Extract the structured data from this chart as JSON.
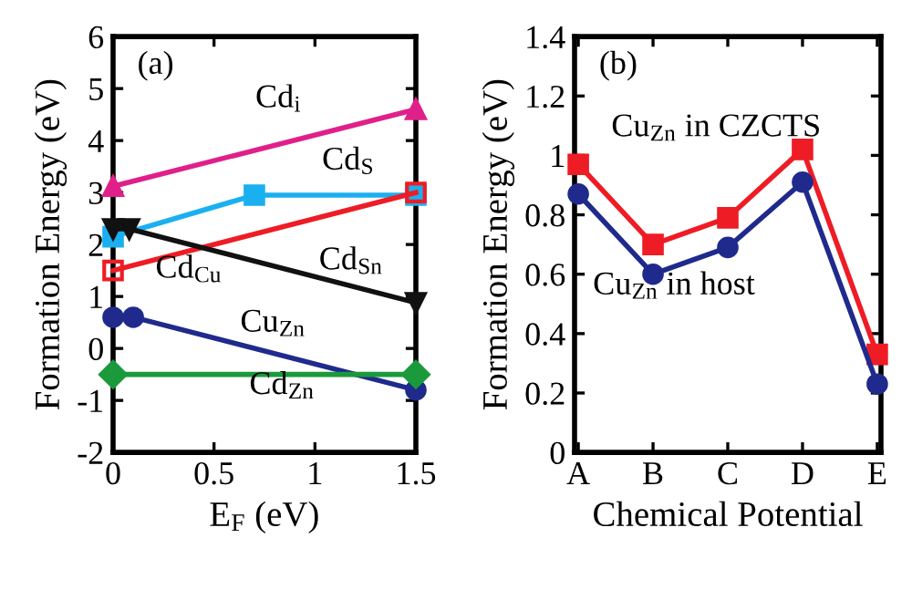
{
  "chart_data": [
    {
      "type": "line",
      "title": "(a)",
      "xlabel": "E$_{F}$ (eV)",
      "ylabel": "Formation Energy (eV)",
      "xlim": [
        0,
        1.5
      ],
      "ylim": [
        -2,
        6
      ],
      "xticks": [
        0,
        0.5,
        1,
        1.5
      ],
      "yticks": [
        -2,
        -1,
        0,
        1,
        2,
        3,
        4,
        5,
        6
      ],
      "grid": false,
      "legend": false,
      "series": [
        {
          "name": "Cd$_{i}$",
          "color": "#e0208a",
          "marker": "triangle",
          "x": [
            0,
            1.5
          ],
          "values": [
            3.12,
            4.6
          ]
        },
        {
          "name": "Cd$_{S}$",
          "color": "#1ab0f0",
          "marker": "square",
          "x": [
            0,
            0.7,
            1.5
          ],
          "values": [
            2.15,
            2.95,
            2.95
          ]
        },
        {
          "name": "Cd$_{Cu}$",
          "color": "#ee1c25",
          "marker": "square",
          "x": [
            0,
            1.5
          ],
          "values": [
            1.5,
            3.0
          ]
        },
        {
          "name": "Cd$_{Sn}$",
          "color": "#111111",
          "marker": "triangle_down",
          "x": [
            0,
            0.08,
            1.5
          ],
          "values": [
            2.3,
            2.3,
            0.88
          ]
        },
        {
          "name": "Cu$_{Zn}$",
          "color": "#1f2a8c",
          "marker": "circle",
          "x": [
            0,
            0.1,
            1.5
          ],
          "values": [
            0.6,
            0.6,
            -0.8
          ]
        },
        {
          "name": "Cd$_{Zn}$",
          "color": "#1a9a3a",
          "marker": "diamond",
          "x": [
            0,
            1.5
          ],
          "values": [
            -0.5,
            -0.5
          ]
        }
      ]
    },
    {
      "type": "line",
      "title": "(b)",
      "xlabel": "Chemical Potential",
      "ylabel": "Formation Energy (eV)",
      "categories": [
        "A",
        "B",
        "C",
        "D",
        "E"
      ],
      "ylim": [
        0,
        1.4
      ],
      "yticks": [
        0,
        0.2,
        0.4,
        0.6,
        0.8,
        1,
        1.2,
        1.4
      ],
      "grid": false,
      "legend": false,
      "series": [
        {
          "name": "Cu$_{Zn}$ in CZCTS",
          "color": "#ee1c25",
          "marker": "square",
          "values": [
            0.97,
            0.7,
            0.79,
            1.02,
            0.33
          ]
        },
        {
          "name": "Cu$_{Zn}$ in host",
          "color": "#1f2a8c",
          "marker": "circle",
          "values": [
            0.87,
            0.6,
            0.69,
            0.91,
            0.23
          ]
        }
      ]
    }
  ]
}
